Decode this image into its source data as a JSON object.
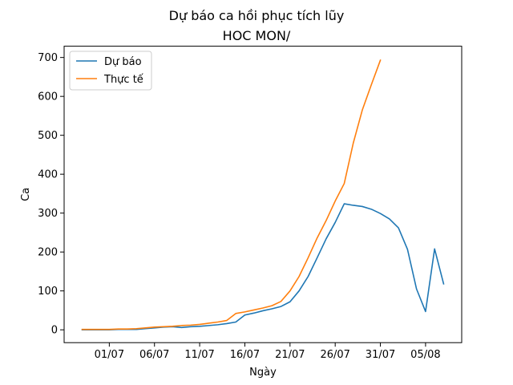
{
  "chart_data": {
    "type": "line",
    "title": "Dự báo ca hồi phục tích lũy",
    "subtitle": "HOC MON/",
    "xlabel": "Ngày",
    "ylabel": "Ca",
    "x_tick_labels": [
      "01/07",
      "06/07",
      "11/07",
      "16/07",
      "21/07",
      "26/07",
      "31/07",
      "05/08"
    ],
    "y_ticks": [
      0,
      100,
      200,
      300,
      400,
      500,
      600,
      700
    ],
    "ylim": [
      -33,
      729
    ],
    "xlim": [
      "2021-06-26",
      "2021-08-09"
    ],
    "grid": false,
    "legend_position": "upper-left",
    "series": [
      {
        "name": "Dự báo",
        "color": "#1f77b4",
        "x": [
          "2021-06-28",
          "2021-06-29",
          "2021-06-30",
          "2021-07-01",
          "2021-07-02",
          "2021-07-03",
          "2021-07-04",
          "2021-07-05",
          "2021-07-06",
          "2021-07-07",
          "2021-07-08",
          "2021-07-09",
          "2021-07-10",
          "2021-07-11",
          "2021-07-12",
          "2021-07-13",
          "2021-07-14",
          "2021-07-15",
          "2021-07-16",
          "2021-07-17",
          "2021-07-18",
          "2021-07-19",
          "2021-07-20",
          "2021-07-21",
          "2021-07-22",
          "2021-07-23",
          "2021-07-24",
          "2021-07-25",
          "2021-07-26",
          "2021-07-27",
          "2021-07-28",
          "2021-07-29",
          "2021-07-30",
          "2021-07-31",
          "2021-08-01",
          "2021-08-02",
          "2021-08-03",
          "2021-08-04",
          "2021-08-05",
          "2021-08-06",
          "2021-08-07"
        ],
        "y": [
          0,
          0,
          0,
          0,
          1,
          1,
          1,
          3,
          5,
          7,
          8,
          6,
          8,
          9,
          11,
          13,
          16,
          20,
          38,
          43,
          49,
          54,
          60,
          72,
          100,
          137,
          185,
          234,
          276,
          324,
          320,
          317,
          310,
          299,
          285,
          262,
          207,
          105,
          47,
          208,
          118
        ]
      },
      {
        "name": "Thực tế",
        "color": "#ff7f0e",
        "x": [
          "2021-06-28",
          "2021-06-29",
          "2021-06-30",
          "2021-07-01",
          "2021-07-02",
          "2021-07-03",
          "2021-07-04",
          "2021-07-05",
          "2021-07-06",
          "2021-07-07",
          "2021-07-08",
          "2021-07-09",
          "2021-07-10",
          "2021-07-11",
          "2021-07-12",
          "2021-07-13",
          "2021-07-14",
          "2021-07-15",
          "2021-07-16",
          "2021-07-17",
          "2021-07-18",
          "2021-07-19",
          "2021-07-20",
          "2021-07-21",
          "2021-07-22",
          "2021-07-23",
          "2021-07-24",
          "2021-07-25",
          "2021-07-26",
          "2021-07-27",
          "2021-07-28",
          "2021-07-29",
          "2021-07-30",
          "2021-07-31"
        ],
        "y": [
          1,
          1,
          1,
          1,
          2,
          2,
          3,
          5,
          7,
          8,
          9,
          11,
          12,
          14,
          17,
          20,
          24,
          42,
          46,
          51,
          56,
          62,
          73,
          100,
          137,
          185,
          236,
          281,
          331,
          376,
          480,
          565,
          630,
          693
        ]
      }
    ]
  }
}
